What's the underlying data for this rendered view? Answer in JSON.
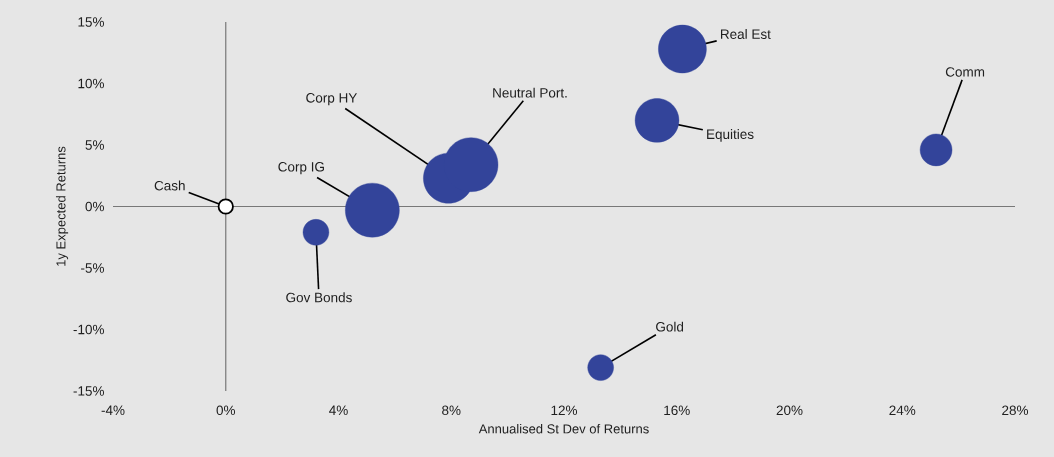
{
  "chart_data": {
    "type": "bubble",
    "xlabel": "Annualised St Dev of Returns",
    "ylabel": "1y Expected Returns",
    "x": [
      0,
      3.2,
      5.2,
      7.9,
      8.7,
      16.2,
      15.3,
      25.2,
      13.3
    ],
    "values": [
      0,
      -2.1,
      -0.3,
      2.3,
      3.4,
      12.8,
      7.0,
      4.6,
      -13.1
    ],
    "sizes": [
      0.09,
      0.23,
      1,
      0.86,
      1,
      0.79,
      0.66,
      0.35,
      0.23
    ],
    "colors": [
      "#ffffff",
      "#33449a",
      "#33449a",
      "#33449a",
      "#33449a",
      "#33449a",
      "#33449a",
      "#33449a",
      "#33449a"
    ],
    "xlim": [
      -4,
      28
    ],
    "ylim": [
      -15,
      15
    ],
    "xticks": [
      {
        "value": -4,
        "label": "-4%"
      },
      {
        "value": 0,
        "label": "0%"
      },
      {
        "value": 4,
        "label": "4%"
      },
      {
        "value": 8,
        "label": "8%"
      },
      {
        "value": 12,
        "label": "12%"
      },
      {
        "value": 16,
        "label": "16%"
      },
      {
        "value": 20,
        "label": "20%"
      },
      {
        "value": 24,
        "label": "24%"
      },
      {
        "value": 28,
        "label": "28%"
      }
    ],
    "yticks": [
      {
        "value": -15,
        "label": "-15%"
      },
      {
        "value": -10,
        "label": "-10%"
      },
      {
        "value": -5,
        "label": "-5%"
      },
      {
        "value": 0,
        "label": "0%"
      },
      {
        "value": 5,
        "label": "5%"
      },
      {
        "value": 10,
        "label": "10%"
      },
      {
        "value": 15,
        "label": "15%"
      }
    ],
    "annotations": [
      {
        "text": "Cash",
        "x": 0,
        "y": 0
      },
      {
        "text": "Gov Bonds",
        "x": 3.2,
        "y": -2.1
      },
      {
        "text": "Corp IG",
        "x": 5.2,
        "y": -0.3
      },
      {
        "text": "Corp HY",
        "x": 7.9,
        "y": 2.3
      },
      {
        "text": "Neutral Port.",
        "x": 8.7,
        "y": 3.4
      },
      {
        "text": "Real Est",
        "x": 16.2,
        "y": 12.8
      },
      {
        "text": "Equities",
        "x": 15.3,
        "y": 7.0
      },
      {
        "text": "Comm",
        "x": 25.2,
        "y": 4.6
      },
      {
        "text": "Gold",
        "x": 13.3,
        "y": -13.1
      }
    ]
  }
}
